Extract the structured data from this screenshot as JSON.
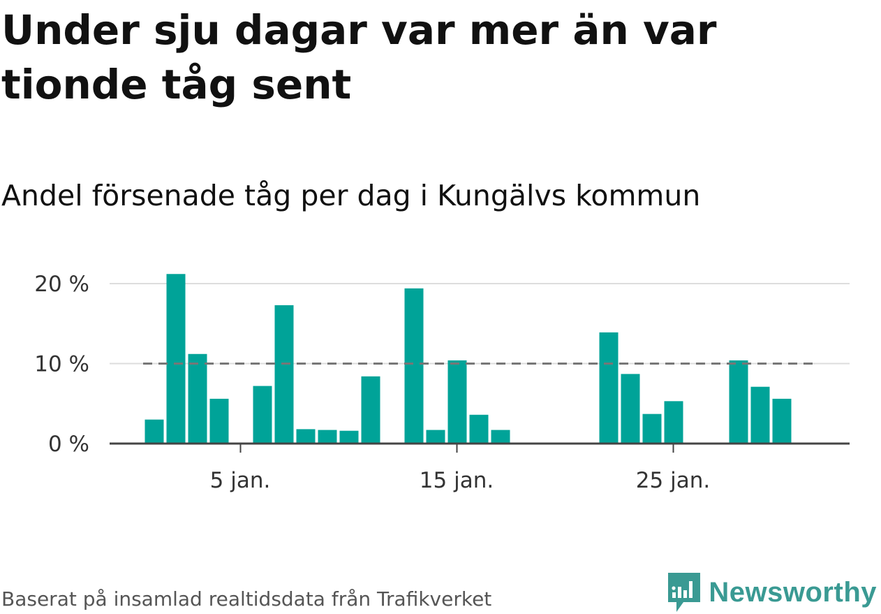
{
  "title": "Under sju dagar var mer än var tionde tåg sent",
  "subtitle": "Andel försenade tåg per dag i Kungälvs kommun",
  "source": "Baserat på insamlad realtidsdata från Trafikverket",
  "logo": {
    "text": "Newsworthy",
    "icon": "newsworthy-chart-bubble-icon"
  },
  "colors": {
    "bar": "#00a398",
    "reference_line": "#777777",
    "grid": "#dddddd",
    "axis": "#444444",
    "logo": "#3a9a93"
  },
  "chart_data": {
    "type": "bar",
    "x_unit": "day of January",
    "x": [
      1,
      2,
      3,
      4,
      5,
      6,
      7,
      8,
      9,
      10,
      11,
      12,
      13,
      14,
      15,
      16,
      17,
      18,
      19,
      20,
      21,
      22,
      23,
      24,
      25,
      26,
      27,
      28,
      29,
      30,
      31
    ],
    "values": [
      3,
      21.2,
      11.2,
      5.6,
      0,
      7.2,
      17.3,
      1.8,
      1.7,
      1.6,
      8.4,
      0,
      19.4,
      1.7,
      10.4,
      3.6,
      1.7,
      0,
      0,
      0,
      0,
      13.9,
      8.7,
      3.7,
      5.3,
      0,
      0,
      10.4,
      7.1,
      5.6,
      0
    ],
    "y_ticks": [
      0,
      10,
      20
    ],
    "y_tick_labels": [
      "0 %",
      "10 %",
      "20 %"
    ],
    "x_ticks": [
      5,
      15,
      25
    ],
    "x_tick_labels": [
      "5 jan.",
      "15 jan.",
      "25 jan."
    ],
    "ylim": [
      0,
      21.5
    ],
    "reference_line": {
      "value": 10,
      "style": "dashed"
    },
    "grid": true,
    "xlabel": "",
    "ylabel": ""
  }
}
